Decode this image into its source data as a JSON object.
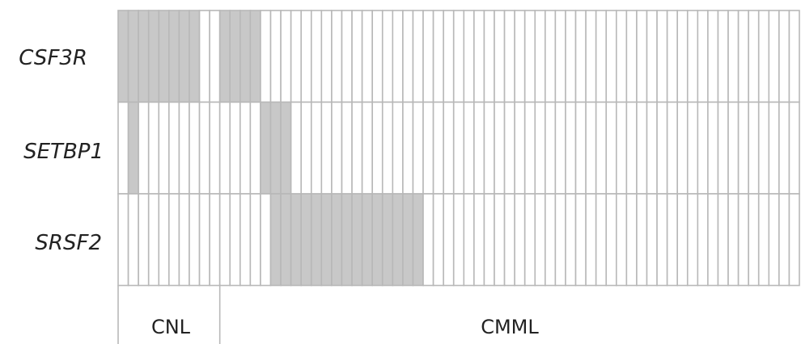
{
  "chart_data": {
    "type": "heatmap",
    "title": "",
    "rows": [
      "CSF3R",
      "SETBP1",
      "SRSF2"
    ],
    "n_samples": 67,
    "groups": [
      {
        "label": "CNL",
        "start": 1,
        "end": 10
      },
      {
        "label": "CMML",
        "start": 11,
        "end": 67
      }
    ],
    "mutated_samples": {
      "CSF3R": [
        1,
        2,
        3,
        4,
        5,
        6,
        7,
        8,
        11,
        12,
        13,
        14
      ],
      "SETBP1": [
        2,
        15,
        16,
        17
      ],
      "SRSF2": [
        16,
        17,
        18,
        19,
        20,
        21,
        22,
        23,
        24,
        25,
        26,
        27,
        28,
        29,
        30
      ]
    },
    "colors": {
      "mutated": "#c8c8c8",
      "wildtype": "#ffffff",
      "grid": "#b8b8b8"
    }
  }
}
